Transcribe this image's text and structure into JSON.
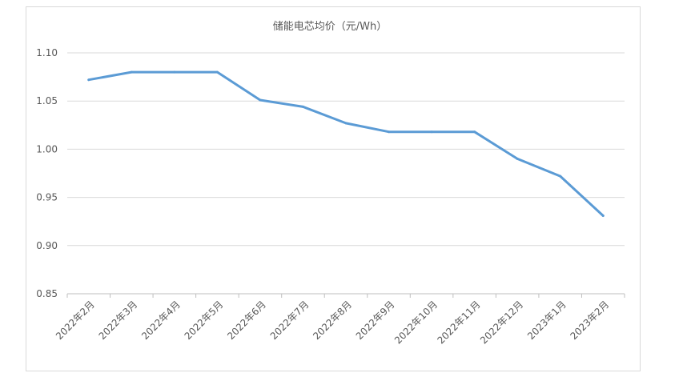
{
  "chart_data": {
    "type": "line",
    "title": "储能电芯均价（元/Wh）",
    "categories": [
      "2022年2月",
      "2022年3月",
      "2022年4月",
      "2022年5月",
      "2022年6月",
      "2022年7月",
      "2022年8月",
      "2022年9月",
      "2022年10月",
      "2022年11月",
      "2022年12月",
      "2023年1月",
      "2023年2月"
    ],
    "series": [
      {
        "name": "",
        "values": [
          1.072,
          1.08,
          1.08,
          1.08,
          1.051,
          1.044,
          1.027,
          1.018,
          1.018,
          1.018,
          0.99,
          0.972,
          0.931
        ]
      }
    ],
    "ylim": [
      0.85,
      1.1
    ],
    "yticks": [
      "0.85",
      "0.90",
      "0.95",
      "1.00",
      "1.05",
      "1.10"
    ],
    "grid": true,
    "legend": "none",
    "colors": {
      "series": "#5b9bd5",
      "grid": "#d9d9d9",
      "text": "#595959"
    }
  }
}
